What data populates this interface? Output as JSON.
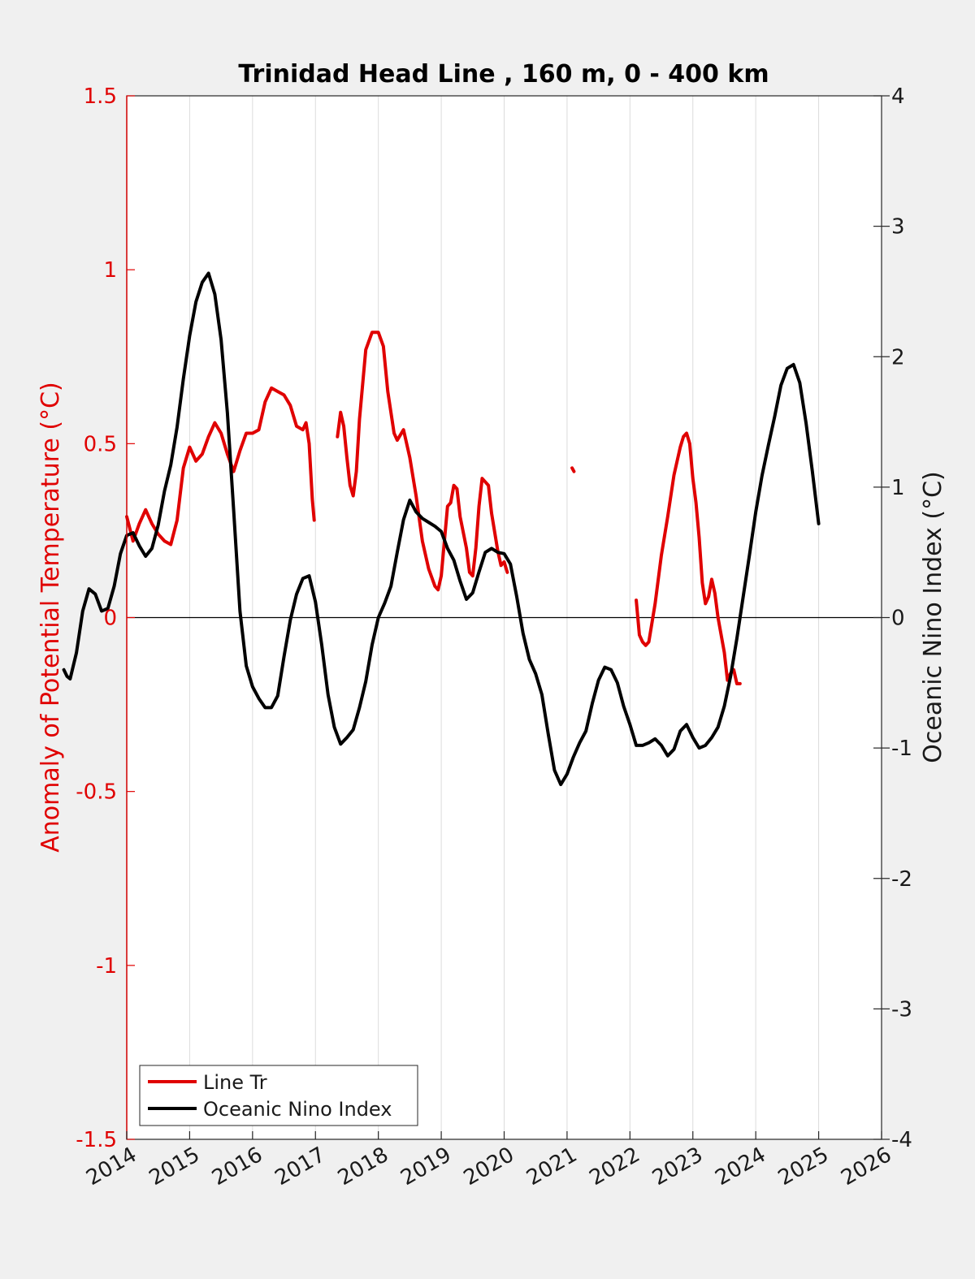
{
  "chart_data": {
    "type": "line",
    "title": "Trinidad Head Line , 160 m, 0 - 400 km",
    "xlabel": "",
    "ylabel": "Anomaly of Potential Temperature (°C)",
    "y2label": "Oceanic Nino Index (°C)",
    "xlim": [
      2014,
      2026
    ],
    "ylim": [
      -1.5,
      1.5
    ],
    "y2lim": [
      -4,
      4
    ],
    "x_ticks": [
      "2014",
      "2015",
      "2016",
      "2017",
      "2018",
      "2019",
      "2020",
      "2021",
      "2022",
      "2023",
      "2024",
      "2025",
      "2026"
    ],
    "y_ticks": [
      "-1.5",
      "-1",
      "-0.5",
      "0",
      "0.5",
      "1",
      "1.5"
    ],
    "y2_ticks": [
      "-4",
      "-3",
      "-2",
      "-1",
      "0",
      "1",
      "2",
      "3",
      "4"
    ],
    "grid": "vertical",
    "legend_position": "bottom-left",
    "colors": {
      "line_tr": "#e00000",
      "oni": "#000000",
      "left_axis": "#e00000"
    },
    "series": [
      {
        "name": "Line Tr",
        "axis": "left",
        "color": "#e00000",
        "segments": [
          [
            [
              2015.0,
              0.29
            ],
            [
              2015.1,
              0.22
            ],
            [
              2015.2,
              0.27
            ],
            [
              2015.3,
              0.31
            ],
            [
              2015.4,
              0.27
            ],
            [
              2015.5,
              0.24
            ],
            [
              2015.6,
              0.22
            ],
            [
              2015.7,
              0.21
            ],
            [
              2015.8,
              0.28
            ],
            [
              2015.9,
              0.43
            ],
            [
              2016.0,
              0.49
            ],
            [
              2016.1,
              0.45
            ],
            [
              2016.2,
              0.47
            ],
            [
              2016.3,
              0.52
            ],
            [
              2016.4,
              0.56
            ],
            [
              2016.5,
              0.53
            ],
            [
              2016.6,
              0.47
            ],
            [
              2016.7,
              0.42
            ],
            [
              2016.8,
              0.48
            ],
            [
              2016.9,
              0.53
            ],
            [
              2017.0,
              0.53
            ],
            [
              2017.1,
              0.54
            ],
            [
              2017.2,
              0.62
            ],
            [
              2017.3,
              0.66
            ],
            [
              2017.4,
              0.65
            ],
            [
              2017.5,
              0.64
            ],
            [
              2017.6,
              0.61
            ],
            [
              2017.7,
              0.55
            ],
            [
              2017.8,
              0.54
            ],
            [
              2017.85,
              0.56
            ],
            [
              2017.9,
              0.5
            ],
            [
              2017.95,
              0.34
            ],
            [
              2017.98,
              0.28
            ]
          ],
          [
            [
              2018.35,
              0.52
            ],
            [
              2018.4,
              0.59
            ],
            [
              2018.45,
              0.55
            ],
            [
              2018.5,
              0.46
            ],
            [
              2018.55,
              0.38
            ],
            [
              2018.6,
              0.35
            ],
            [
              2018.65,
              0.42
            ],
            [
              2018.7,
              0.57
            ],
            [
              2018.8,
              0.77
            ],
            [
              2018.9,
              0.82
            ],
            [
              2019.0,
              0.82
            ],
            [
              2019.08,
              0.78
            ],
            [
              2019.15,
              0.65
            ],
            [
              2019.25,
              0.53
            ],
            [
              2019.3,
              0.51
            ],
            [
              2019.4,
              0.54
            ],
            [
              2019.5,
              0.46
            ],
            [
              2019.6,
              0.35
            ],
            [
              2019.7,
              0.22
            ],
            [
              2019.8,
              0.14
            ],
            [
              2019.9,
              0.09
            ],
            [
              2019.95,
              0.08
            ],
            [
              2020.0,
              0.12
            ],
            [
              2020.1,
              0.32
            ],
            [
              2020.15,
              0.33
            ],
            [
              2020.2,
              0.38
            ],
            [
              2020.25,
              0.37
            ],
            [
              2020.3,
              0.29
            ],
            [
              2020.4,
              0.2
            ],
            [
              2020.45,
              0.13
            ],
            [
              2020.5,
              0.12
            ],
            [
              2020.55,
              0.2
            ],
            [
              2020.6,
              0.32
            ],
            [
              2020.65,
              0.4
            ],
            [
              2020.7,
              0.39
            ],
            [
              2020.75,
              0.38
            ],
            [
              2020.8,
              0.3
            ],
            [
              2020.9,
              0.19
            ],
            [
              2020.95,
              0.15
            ],
            [
              2021.0,
              0.16
            ],
            [
              2021.05,
              0.13
            ]
          ],
          [
            [
              2022.08,
              0.43
            ],
            [
              2022.11,
              0.42
            ]
          ],
          [
            [
              2023.1,
              0.05
            ],
            [
              2023.15,
              -0.05
            ],
            [
              2023.2,
              -0.07
            ],
            [
              2023.25,
              -0.08
            ],
            [
              2023.3,
              -0.07
            ],
            [
              2023.4,
              0.04
            ],
            [
              2023.5,
              0.18
            ],
            [
              2023.6,
              0.29
            ],
            [
              2023.7,
              0.41
            ],
            [
              2023.8,
              0.49
            ],
            [
              2023.85,
              0.52
            ],
            [
              2023.9,
              0.53
            ],
            [
              2023.95,
              0.5
            ],
            [
              2024.0,
              0.4
            ],
            [
              2024.05,
              0.33
            ],
            [
              2024.1,
              0.23
            ],
            [
              2024.15,
              0.1
            ],
            [
              2024.2,
              0.04
            ],
            [
              2024.25,
              0.06
            ],
            [
              2024.3,
              0.11
            ],
            [
              2024.35,
              0.07
            ],
            [
              2024.4,
              0.0
            ],
            [
              2024.5,
              -0.1
            ],
            [
              2024.55,
              -0.18
            ],
            [
              2024.6,
              -0.16
            ],
            [
              2024.65,
              -0.15
            ],
            [
              2024.7,
              -0.19
            ],
            [
              2024.75,
              -0.19
            ]
          ]
        ]
      },
      {
        "name": "Oceanic Nino Index",
        "axis": "right",
        "color": "#000000",
        "segments": [
          [
            [
              2014.0,
              -0.4
            ],
            [
              2014.05,
              -0.45
            ],
            [
              2014.1,
              -0.47
            ],
            [
              2014.2,
              -0.27
            ],
            [
              2014.3,
              0.05
            ],
            [
              2014.4,
              0.22
            ],
            [
              2014.5,
              0.18
            ],
            [
              2014.6,
              0.05
            ],
            [
              2014.7,
              0.07
            ],
            [
              2014.8,
              0.24
            ],
            [
              2014.9,
              0.49
            ],
            [
              2015.0,
              0.63
            ],
            [
              2015.1,
              0.65
            ],
            [
              2015.2,
              0.55
            ],
            [
              2015.3,
              0.47
            ],
            [
              2015.4,
              0.53
            ],
            [
              2015.5,
              0.71
            ],
            [
              2015.6,
              0.97
            ],
            [
              2015.7,
              1.17
            ],
            [
              2015.8,
              1.46
            ],
            [
              2015.9,
              1.83
            ],
            [
              2016.0,
              2.16
            ],
            [
              2016.1,
              2.42
            ],
            [
              2016.2,
              2.57
            ],
            [
              2016.3,
              2.64
            ],
            [
              2016.4,
              2.48
            ],
            [
              2016.5,
              2.13
            ],
            [
              2016.6,
              1.57
            ],
            [
              2016.7,
              0.82
            ],
            [
              2016.8,
              0.05
            ],
            [
              2016.9,
              -0.37
            ],
            [
              2017.0,
              -0.53
            ],
            [
              2017.1,
              -0.62
            ],
            [
              2017.2,
              -0.69
            ],
            [
              2017.3,
              -0.69
            ],
            [
              2017.4,
              -0.6
            ],
            [
              2017.5,
              -0.3
            ],
            [
              2017.6,
              -0.02
            ],
            [
              2017.7,
              0.18
            ],
            [
              2017.8,
              0.3
            ],
            [
              2017.9,
              0.32
            ],
            [
              2018.0,
              0.12
            ],
            [
              2018.1,
              -0.21
            ],
            [
              2018.2,
              -0.59
            ],
            [
              2018.3,
              -0.84
            ],
            [
              2018.4,
              -0.97
            ],
            [
              2018.5,
              -0.92
            ],
            [
              2018.6,
              -0.86
            ],
            [
              2018.7,
              -0.69
            ],
            [
              2018.8,
              -0.49
            ],
            [
              2018.9,
              -0.21
            ],
            [
              2019.0,
              0.0
            ],
            [
              2019.1,
              0.11
            ],
            [
              2019.2,
              0.24
            ],
            [
              2019.3,
              0.5
            ],
            [
              2019.4,
              0.75
            ],
            [
              2019.5,
              0.9
            ],
            [
              2019.6,
              0.81
            ],
            [
              2019.7,
              0.76
            ],
            [
              2019.8,
              0.73
            ],
            [
              2019.9,
              0.7
            ],
            [
              2020.0,
              0.66
            ],
            [
              2020.1,
              0.53
            ],
            [
              2020.2,
              0.44
            ],
            [
              2020.3,
              0.28
            ],
            [
              2020.4,
              0.14
            ],
            [
              2020.5,
              0.19
            ],
            [
              2020.6,
              0.35
            ],
            [
              2020.7,
              0.5
            ],
            [
              2020.8,
              0.53
            ],
            [
              2020.9,
              0.5
            ],
            [
              2021.0,
              0.49
            ],
            [
              2021.1,
              0.41
            ],
            [
              2021.2,
              0.16
            ],
            [
              2021.3,
              -0.12
            ],
            [
              2021.4,
              -0.32
            ],
            [
              2021.5,
              -0.43
            ],
            [
              2021.6,
              -0.59
            ],
            [
              2021.7,
              -0.89
            ],
            [
              2021.8,
              -1.17
            ],
            [
              2021.9,
              -1.28
            ],
            [
              2022.0,
              -1.2
            ],
            [
              2022.1,
              -1.07
            ],
            [
              2022.2,
              -0.96
            ],
            [
              2022.3,
              -0.87
            ],
            [
              2022.4,
              -0.66
            ],
            [
              2022.5,
              -0.48
            ],
            [
              2022.6,
              -0.38
            ],
            [
              2022.7,
              -0.4
            ],
            [
              2022.8,
              -0.5
            ],
            [
              2022.9,
              -0.68
            ],
            [
              2023.0,
              -0.82
            ],
            [
              2023.1,
              -0.98
            ],
            [
              2023.2,
              -0.98
            ],
            [
              2023.3,
              -0.96
            ],
            [
              2023.4,
              -0.93
            ],
            [
              2023.5,
              -0.98
            ],
            [
              2023.6,
              -1.06
            ],
            [
              2023.7,
              -1.01
            ],
            [
              2023.8,
              -0.87
            ],
            [
              2023.9,
              -0.82
            ],
            [
              2024.0,
              -0.92
            ],
            [
              2024.1,
              -1.0
            ],
            [
              2024.2,
              -0.98
            ],
            [
              2024.3,
              -0.92
            ],
            [
              2024.4,
              -0.84
            ],
            [
              2024.5,
              -0.68
            ],
            [
              2024.6,
              -0.45
            ],
            [
              2024.7,
              -0.16
            ],
            [
              2024.8,
              0.16
            ],
            [
              2024.9,
              0.48
            ],
            [
              2025.0,
              0.81
            ],
            [
              2025.1,
              1.09
            ],
            [
              2025.2,
              1.32
            ],
            [
              2025.3,
              1.54
            ],
            [
              2025.4,
              1.78
            ],
            [
              2025.5,
              1.91
            ],
            [
              2025.6,
              1.94
            ],
            [
              2025.7,
              1.8
            ],
            [
              2025.8,
              1.49
            ],
            [
              2025.9,
              1.12
            ],
            [
              2026.0,
              0.72
            ]
          ]
        ]
      }
    ]
  },
  "legend": {
    "items": [
      {
        "label": "Line Tr",
        "color": "#e00000"
      },
      {
        "label": "Oceanic Nino Index",
        "color": "#000000"
      }
    ]
  }
}
